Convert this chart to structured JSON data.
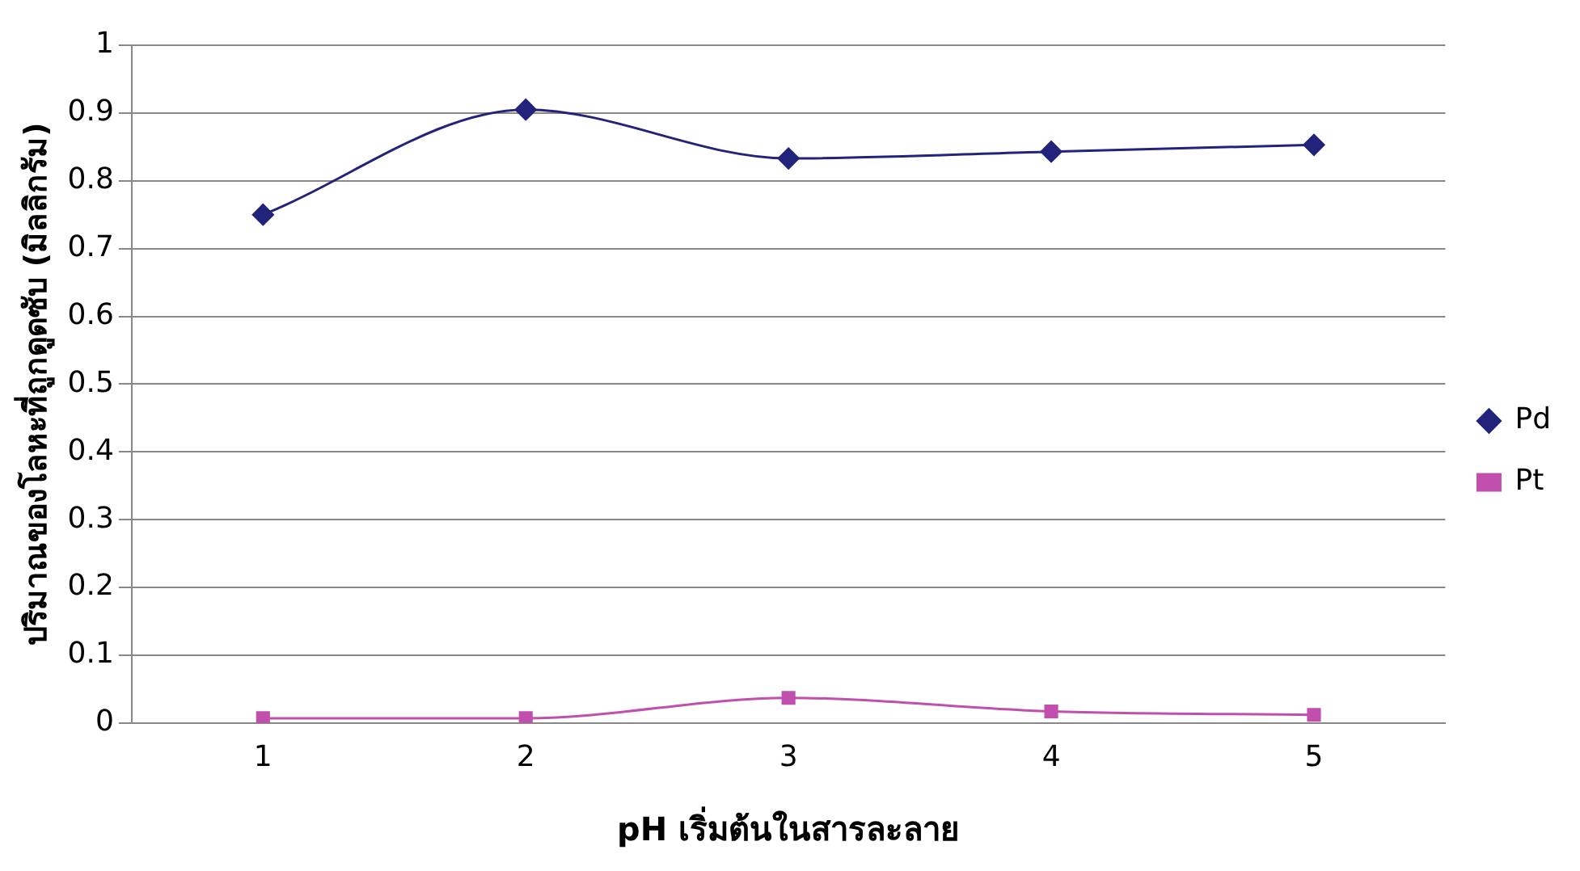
{
  "chart_data": {
    "type": "line",
    "xlabel": "pH เริ่มต้นในสารละลาย",
    "ylabel": "ปริมาณของโลหะที่ถูกดูดซับ (มิลลิกรัม)",
    "categories": [
      "1",
      "2",
      "3",
      "4",
      "5"
    ],
    "series": [
      {
        "name": "Pd",
        "color": "#22237a",
        "marker": "diamond",
        "values": [
          0.75,
          0.905,
          0.833,
          0.843,
          0.853
        ]
      },
      {
        "name": "Pt",
        "color": "#c04fae",
        "marker": "square",
        "values": [
          0.007,
          0.007,
          0.037,
          0.017,
          0.012
        ]
      }
    ],
    "ylim": [
      0,
      1
    ],
    "yticks": [
      0,
      0.1,
      0.2,
      0.3,
      0.4,
      0.5,
      0.6,
      0.7,
      0.8,
      0.9,
      1
    ],
    "grid": "y",
    "legend": "right",
    "line_style": "solid"
  }
}
